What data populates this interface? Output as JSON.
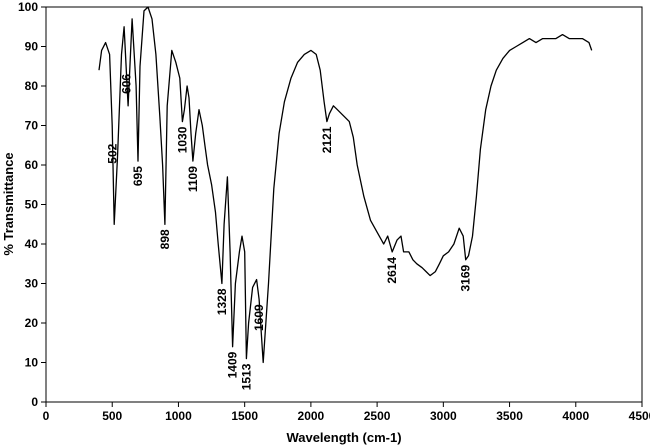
{
  "chart_data": {
    "type": "line",
    "xlabel": "Wavelength (cm-1)",
    "ylabel": "% Transmittance",
    "xlim": [
      0,
      4500
    ],
    "ylim": [
      0,
      100
    ],
    "x_ticks": [
      "0",
      "500",
      "1000",
      "1500",
      "2000",
      "2500",
      "3000",
      "3500",
      "4000",
      "4500"
    ],
    "y_ticks": [
      "0",
      "10",
      "20",
      "30",
      "40",
      "50",
      "60",
      "70",
      "80",
      "90",
      "100"
    ],
    "grid": false,
    "legend": "none",
    "line_color": "#000000",
    "series": [
      {
        "x": [
          400,
          420,
          450,
          480,
          500,
          515,
          540,
          570,
          590,
          605,
          620,
          650,
          680,
          695,
          710,
          740,
          770,
          800,
          830,
          860,
          880,
          898,
          915,
          950,
          980,
          1010,
          1030,
          1045,
          1065,
          1080,
          1095,
          1109,
          1130,
          1155,
          1180,
          1200,
          1220,
          1250,
          1280,
          1300,
          1328,
          1345,
          1370,
          1390,
          1409,
          1430,
          1460,
          1480,
          1500,
          1513,
          1530,
          1560,
          1590,
          1609,
          1640,
          1680,
          1720,
          1760,
          1800,
          1850,
          1900,
          1950,
          2000,
          2040,
          2070,
          2100,
          2121,
          2140,
          2170,
          2200,
          2230,
          2260,
          2290,
          2320,
          2350,
          2400,
          2450,
          2500,
          2550,
          2580,
          2614,
          2650,
          2680,
          2700,
          2740,
          2770,
          2800,
          2840,
          2870,
          2900,
          2940,
          2970,
          3000,
          3040,
          3080,
          3120,
          3150,
          3169,
          3190,
          3220,
          3250,
          3280,
          3320,
          3360,
          3400,
          3450,
          3500,
          3550,
          3600,
          3650,
          3700,
          3750,
          3800,
          3850,
          3900,
          3950,
          4000,
          4050,
          4100,
          4120
        ],
        "y": [
          84,
          89,
          91,
          88,
          70,
          45,
          62,
          88,
          95,
          85,
          75,
          97,
          80,
          61,
          85,
          99,
          100,
          97,
          88,
          72,
          60,
          45,
          75,
          89,
          86,
          82,
          71,
          74,
          80,
          77,
          68,
          61,
          68,
          74,
          70,
          65,
          60,
          55,
          48,
          40,
          30,
          45,
          57,
          38,
          14,
          30,
          38,
          42,
          38,
          11,
          20,
          29,
          31,
          26,
          10,
          30,
          54,
          68,
          76,
          82,
          86,
          88,
          89,
          88,
          84,
          76,
          71,
          73,
          75,
          74,
          73,
          72,
          71,
          67,
          60,
          52,
          46,
          43,
          40,
          42,
          38,
          41,
          42,
          38,
          38,
          36,
          35,
          34,
          33,
          32,
          33,
          35,
          37,
          38,
          40,
          44,
          42,
          36,
          37,
          42,
          52,
          64,
          74,
          80,
          84,
          87,
          89,
          90,
          91,
          92,
          91,
          92,
          92,
          92,
          93,
          92,
          92,
          92,
          91,
          89
        ]
      }
    ],
    "annotations": [
      {
        "x": 502,
        "label": "502"
      },
      {
        "x": 606,
        "label": "606"
      },
      {
        "x": 695,
        "label": "695"
      },
      {
        "x": 898,
        "label": "898"
      },
      {
        "x": 1030,
        "label": "1030"
      },
      {
        "x": 1109,
        "label": "1109"
      },
      {
        "x": 1328,
        "label": "1328"
      },
      {
        "x": 1409,
        "label": "1409"
      },
      {
        "x": 1513,
        "label": "1513"
      },
      {
        "x": 1609,
        "label": "1609"
      },
      {
        "x": 2121,
        "label": "2121"
      },
      {
        "x": 2614,
        "label": "2614"
      },
      {
        "x": 3169,
        "label": "3169"
      }
    ]
  }
}
